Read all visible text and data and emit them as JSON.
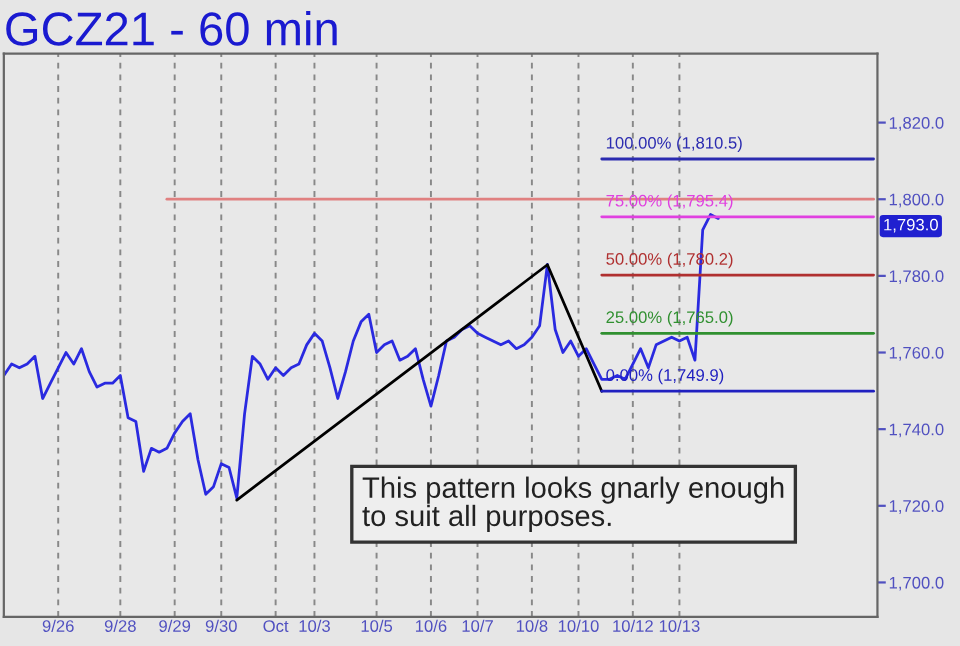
{
  "chart_data": {
    "type": "line",
    "title": "GCZ21 - 60 min",
    "categories": [
      null,
      null,
      null,
      null,
      null,
      null,
      null,
      "9/26",
      null,
      null,
      null,
      null,
      null,
      null,
      null,
      "9/28",
      null,
      null,
      null,
      null,
      null,
      null,
      "9/29",
      null,
      null,
      null,
      null,
      null,
      "9/30",
      null,
      null,
      null,
      null,
      null,
      null,
      "Oct",
      null,
      null,
      null,
      null,
      "10/3",
      null,
      null,
      null,
      null,
      null,
      null,
      null,
      "10/5",
      null,
      null,
      null,
      null,
      null,
      null,
      "10/6",
      null,
      null,
      null,
      null,
      null,
      "10/7",
      null,
      null,
      null,
      null,
      null,
      null,
      "10/8",
      null,
      null,
      null,
      null,
      null,
      "10/10",
      null,
      null,
      null,
      null,
      null,
      null,
      "10/12",
      null,
      null,
      null,
      null,
      null,
      "10/13",
      null,
      null,
      null,
      null,
      null,
      null,
      null,
      null,
      null,
      null,
      null,
      null,
      null,
      null,
      null,
      null,
      null,
      null,
      null,
      null,
      null,
      null,
      null,
      null,
      null
    ],
    "yticks": [
      {
        "value": 1700,
        "label": "1,700.0"
      },
      {
        "value": 1720,
        "label": "1,720.0"
      },
      {
        "value": 1740,
        "label": "1,740.0"
      },
      {
        "value": 1760,
        "label": "1,760.0"
      },
      {
        "value": 1780,
        "label": "1,780.0"
      },
      {
        "value": 1800,
        "label": "1,800.0"
      },
      {
        "value": 1820,
        "label": "1,820.0"
      }
    ],
    "ylim": [
      1691,
      1838
    ],
    "grid": "x",
    "legend": false,
    "series": [
      {
        "color": "#2a2ae0",
        "values": [
          1754,
          1757,
          1756,
          1757,
          1759,
          1748,
          1752,
          1756,
          1760,
          1757,
          1761,
          1755,
          1751,
          1752,
          1752,
          1754,
          1743,
          1742,
          1729,
          1735,
          1734,
          1735,
          1739,
          1742,
          1744,
          1732,
          1723,
          1725,
          1731,
          1730,
          1722,
          1744,
          1759,
          1757,
          1753,
          1756,
          1754,
          1756,
          1757,
          1762,
          1765,
          1763,
          1756,
          1748,
          1755,
          1763,
          1768,
          1770,
          1760,
          1762,
          1763,
          1758,
          1759,
          1761,
          1753,
          1746,
          1754,
          1763,
          1764,
          1766,
          1767,
          1765,
          1764,
          1763,
          1762,
          1763,
          1761,
          1762,
          1764,
          1767,
          1783,
          1766,
          1760,
          1763,
          1759,
          1761,
          1757,
          1753,
          1753,
          1754,
          1753,
          1757,
          1761,
          1756,
          1762,
          1763,
          1764,
          1763,
          1764,
          1758,
          1792,
          1796,
          1795,
          null,
          null,
          null,
          null,
          null,
          null,
          null,
          null,
          null,
          null,
          null,
          null,
          null,
          null,
          null,
          null,
          null,
          null,
          null,
          null
        ]
      },
      {
        "color": "#000000",
        "values": [
          null,
          null,
          null,
          null,
          null,
          null,
          null,
          null,
          null,
          null,
          null,
          null,
          null,
          null,
          null,
          null,
          null,
          null,
          null,
          null,
          null,
          null,
          null,
          null,
          null,
          null,
          null,
          null,
          null,
          null,
          1721.5,
          null,
          null,
          null,
          null,
          null,
          null,
          null,
          null,
          null,
          null,
          null,
          null,
          null,
          null,
          null,
          null,
          null,
          null,
          null,
          null,
          null,
          null,
          null,
          null,
          null,
          null,
          null,
          null,
          null,
          null,
          null,
          null,
          null,
          null,
          null,
          null,
          null,
          null,
          null,
          1782.9,
          null,
          null,
          null,
          null,
          null,
          null,
          1749.9,
          null,
          null,
          null,
          null,
          null,
          null,
          null,
          null,
          null,
          null,
          null,
          null,
          null,
          null,
          null,
          null,
          null,
          null,
          null,
          null,
          null,
          null,
          null,
          null,
          null,
          null,
          null,
          null,
          null,
          null,
          null,
          null,
          null,
          null,
          null
        ]
      },
      {
        "color": "#e08080",
        "values": [
          null,
          null,
          null,
          null,
          null,
          null,
          null,
          null,
          null,
          null,
          null,
          null,
          null,
          null,
          null,
          null,
          null,
          null,
          null,
          null,
          null,
          1800,
          null,
          null,
          null,
          null,
          null,
          null,
          null,
          null,
          null,
          null,
          null,
          null,
          null,
          null,
          null,
          null,
          null,
          null,
          null,
          null,
          null,
          null,
          null,
          null,
          null,
          null,
          null,
          null,
          null,
          null,
          null,
          null,
          null,
          null,
          null,
          null,
          null,
          null,
          null,
          null,
          null,
          null,
          null,
          null,
          null,
          null,
          null,
          null,
          null,
          null,
          null,
          null,
          null,
          null,
          null,
          null,
          null,
          null,
          null,
          null,
          null,
          null,
          null,
          null,
          null,
          null,
          null,
          null,
          null,
          null,
          null,
          null,
          null,
          null,
          null,
          null,
          null,
          null,
          null,
          null,
          null,
          null,
          null,
          null,
          null,
          null,
          null,
          null,
          null,
          null,
          1800
        ]
      },
      {
        "color": "#2b2bb0",
        "values": [
          null,
          null,
          null,
          null,
          null,
          null,
          null,
          null,
          null,
          null,
          null,
          null,
          null,
          null,
          null,
          null,
          null,
          null,
          null,
          null,
          null,
          null,
          null,
          null,
          null,
          null,
          null,
          null,
          null,
          null,
          null,
          null,
          null,
          null,
          null,
          null,
          null,
          null,
          null,
          null,
          null,
          null,
          null,
          null,
          null,
          null,
          null,
          null,
          null,
          null,
          null,
          null,
          null,
          null,
          null,
          null,
          null,
          null,
          null,
          null,
          null,
          null,
          null,
          null,
          null,
          null,
          null,
          null,
          null,
          null,
          null,
          null,
          null,
          null,
          null,
          null,
          null,
          1810.5,
          null,
          null,
          null,
          null,
          null,
          null,
          null,
          null,
          null,
          null,
          null,
          null,
          null,
          null,
          null,
          null,
          null,
          null,
          null,
          null,
          null,
          null,
          null,
          null,
          null,
          null,
          null,
          null,
          null,
          null,
          null,
          null,
          null,
          null,
          1810.5
        ]
      },
      {
        "color": "#e040e0",
        "values": [
          null,
          null,
          null,
          null,
          null,
          null,
          null,
          null,
          null,
          null,
          null,
          null,
          null,
          null,
          null,
          null,
          null,
          null,
          null,
          null,
          null,
          null,
          null,
          null,
          null,
          null,
          null,
          null,
          null,
          null,
          null,
          null,
          null,
          null,
          null,
          null,
          null,
          null,
          null,
          null,
          null,
          null,
          null,
          null,
          null,
          null,
          null,
          null,
          null,
          null,
          null,
          null,
          null,
          null,
          null,
          null,
          null,
          null,
          null,
          null,
          null,
          null,
          null,
          null,
          null,
          null,
          null,
          null,
          null,
          null,
          null,
          null,
          null,
          null,
          null,
          null,
          null,
          1795.4,
          null,
          null,
          null,
          null,
          null,
          null,
          null,
          null,
          null,
          null,
          null,
          null,
          null,
          null,
          null,
          null,
          null,
          null,
          null,
          null,
          null,
          null,
          null,
          null,
          null,
          null,
          null,
          null,
          null,
          null,
          null,
          null,
          null,
          null,
          1795.4
        ]
      },
      {
        "color": "#b03030",
        "values": [
          null,
          null,
          null,
          null,
          null,
          null,
          null,
          null,
          null,
          null,
          null,
          null,
          null,
          null,
          null,
          null,
          null,
          null,
          null,
          null,
          null,
          null,
          null,
          null,
          null,
          null,
          null,
          null,
          null,
          null,
          null,
          null,
          null,
          null,
          null,
          null,
          null,
          null,
          null,
          null,
          null,
          null,
          null,
          null,
          null,
          null,
          null,
          null,
          null,
          null,
          null,
          null,
          null,
          null,
          null,
          null,
          null,
          null,
          null,
          null,
          null,
          null,
          null,
          null,
          null,
          null,
          null,
          null,
          null,
          null,
          null,
          null,
          null,
          null,
          null,
          null,
          null,
          1780.2,
          null,
          null,
          null,
          null,
          null,
          null,
          null,
          null,
          null,
          null,
          null,
          null,
          null,
          null,
          null,
          null,
          null,
          null,
          null,
          null,
          null,
          null,
          null,
          null,
          null,
          null,
          null,
          null,
          null,
          null,
          null,
          null,
          null,
          null,
          1780.2
        ]
      },
      {
        "color": "#309030",
        "values": [
          null,
          null,
          null,
          null,
          null,
          null,
          null,
          null,
          null,
          null,
          null,
          null,
          null,
          null,
          null,
          null,
          null,
          null,
          null,
          null,
          null,
          null,
          null,
          null,
          null,
          null,
          null,
          null,
          null,
          null,
          null,
          null,
          null,
          null,
          null,
          null,
          null,
          null,
          null,
          null,
          null,
          null,
          null,
          null,
          null,
          null,
          null,
          null,
          null,
          null,
          null,
          null,
          null,
          null,
          null,
          null,
          null,
          null,
          null,
          null,
          null,
          null,
          null,
          null,
          null,
          null,
          null,
          null,
          null,
          null,
          null,
          null,
          null,
          null,
          null,
          null,
          null,
          1765.0,
          null,
          null,
          null,
          null,
          null,
          null,
          null,
          null,
          null,
          null,
          null,
          null,
          null,
          null,
          null,
          null,
          null,
          null,
          null,
          null,
          null,
          null,
          null,
          null,
          null,
          null,
          null,
          null,
          null,
          null,
          null,
          null,
          null,
          null,
          1765.0
        ]
      },
      {
        "color": "#2020c0",
        "values": [
          null,
          null,
          null,
          null,
          null,
          null,
          null,
          null,
          null,
          null,
          null,
          null,
          null,
          null,
          null,
          null,
          null,
          null,
          null,
          null,
          null,
          null,
          null,
          null,
          null,
          null,
          null,
          null,
          null,
          null,
          null,
          null,
          null,
          null,
          null,
          null,
          null,
          null,
          null,
          null,
          null,
          null,
          null,
          null,
          null,
          null,
          null,
          null,
          null,
          null,
          null,
          null,
          null,
          null,
          null,
          null,
          null,
          null,
          null,
          null,
          null,
          null,
          null,
          null,
          null,
          null,
          null,
          null,
          null,
          null,
          null,
          null,
          null,
          null,
          null,
          null,
          null,
          1749.9,
          null,
          null,
          null,
          null,
          null,
          null,
          null,
          null,
          null,
          null,
          null,
          null,
          null,
          null,
          null,
          null,
          null,
          null,
          null,
          null,
          null,
          null,
          null,
          null,
          null,
          null,
          null,
          null,
          null,
          null,
          null,
          null,
          null,
          null,
          1749.9
        ]
      }
    ],
    "annotations": [
      {
        "text": "100.00% (1,810.5)",
        "y": 1810.5
      },
      {
        "text": "75.00% (1,795.4)",
        "y": 1795.4
      },
      {
        "text": "50.00% (1,780.2)",
        "y": 1780.2
      },
      {
        "text": "25.00% (1,765.0)",
        "y": 1765.0
      },
      {
        "text": "0.00% (1,749.9)",
        "y": 1749.9
      },
      {
        "text": "1,793.0",
        "y": 1793
      },
      "This pattern looks gnarly enough\nto suit all purposes."
    ]
  }
}
